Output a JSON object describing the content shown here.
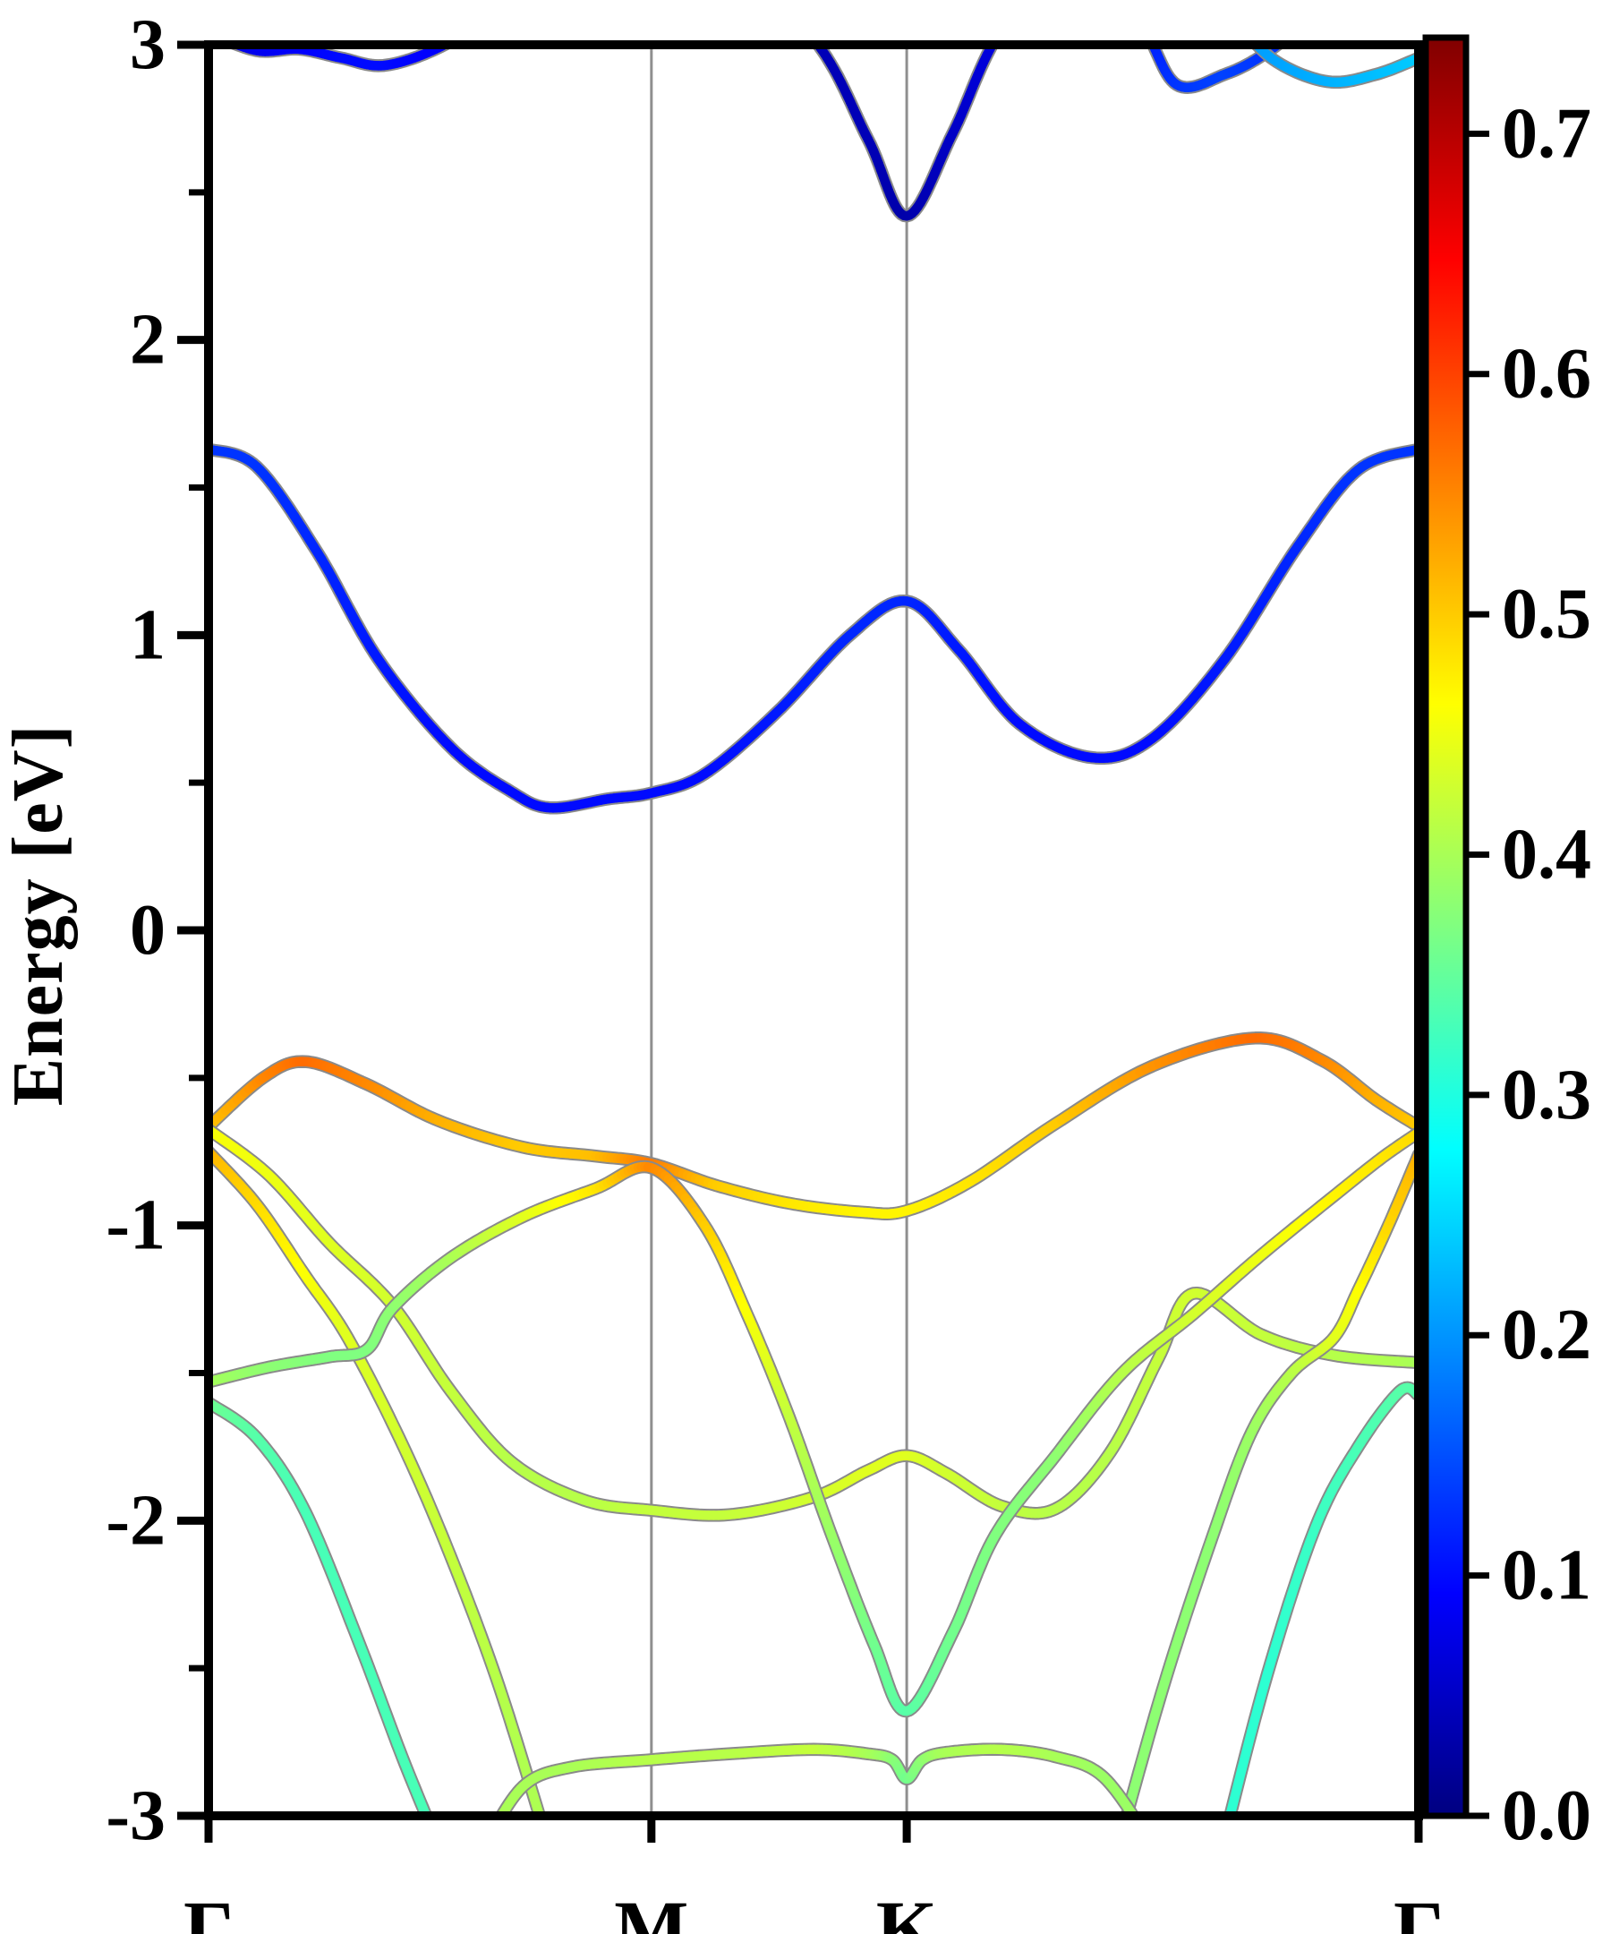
{
  "figure": {
    "background": "#ffffff",
    "accent_colors": {
      "spine": "#000000",
      "gridline": "#8f8f8f",
      "band_edge": "#8a8a8a"
    }
  },
  "chart_data": {
    "type": "line",
    "subtype": "band-structure-fatband",
    "title": "",
    "xlabel": "",
    "ylabel": "Energy [eV]",
    "ylim": [
      -3,
      3
    ],
    "grid": "vertical-at-high-symmetry-points",
    "x_ticks": [
      {
        "label": "Γ",
        "f": 0.0
      },
      {
        "label": "M",
        "f": 0.366
      },
      {
        "label": "K",
        "f": 0.577
      },
      {
        "label": "Γ",
        "f": 1.0
      }
    ],
    "y_major_ticks": [
      "3",
      "2",
      "1",
      "0",
      "-1",
      "-2",
      "-3"
    ],
    "y_major_values": [
      3,
      2,
      1,
      0,
      -1,
      -2,
      -3
    ],
    "y_minor_values": [
      2.5,
      1.5,
      0.5,
      -0.5,
      -1.5,
      -2.5
    ],
    "colorbar": {
      "colormap": "jet",
      "vmin": 0.0,
      "vmax": 0.74,
      "tick_labels": [
        "0.7",
        "0.6",
        "0.5",
        "0.4",
        "0.3",
        "0.2",
        "0.1",
        "0.0"
      ],
      "tick_values": [
        0.7,
        0.6,
        0.5,
        0.4,
        0.3,
        0.2,
        0.1,
        0.0
      ],
      "legend_position": "right"
    },
    "bands_note": "points are [k-fraction along Γ-M-K-Γ, energy eV, color weight]",
    "bands": [
      {
        "name": "conduction-1",
        "points": [
          [
            0,
            1.63,
            0.13
          ],
          [
            0.04,
            1.57,
            0.13
          ],
          [
            0.09,
            1.28,
            0.12
          ],
          [
            0.14,
            0.92,
            0.11
          ],
          [
            0.2,
            0.62,
            0.1
          ],
          [
            0.25,
            0.47,
            0.1
          ],
          [
            0.282,
            0.415,
            0.1
          ],
          [
            0.33,
            0.445,
            0.1
          ],
          [
            0.366,
            0.465,
            0.1
          ],
          [
            0.41,
            0.53,
            0.1
          ],
          [
            0.47,
            0.74,
            0.11
          ],
          [
            0.53,
            1.0,
            0.12
          ],
          [
            0.577,
            1.115,
            0.12
          ],
          [
            0.62,
            0.95,
            0.11
          ],
          [
            0.67,
            0.7,
            0.1
          ],
          [
            0.73,
            0.585,
            0.1
          ],
          [
            0.78,
            0.65,
            0.1
          ],
          [
            0.84,
            0.92,
            0.11
          ],
          [
            0.9,
            1.3,
            0.12
          ],
          [
            0.95,
            1.56,
            0.13
          ],
          [
            1,
            1.63,
            0.13
          ]
        ]
      },
      {
        "name": "conduction-2",
        "points": [
          [
            0,
            3.04,
            0.06
          ],
          [
            0.04,
            2.98,
            0.08
          ],
          [
            0.075,
            2.985,
            0.09
          ],
          [
            0.11,
            2.955,
            0.1
          ],
          [
            0.145,
            2.93,
            0.1
          ],
          [
            0.19,
            2.99,
            0.09
          ],
          [
            0.23,
            3.1,
            0.07
          ],
          [
            0.3,
            3.35,
            0.05
          ],
          [
            0.42,
            3.3,
            0.04
          ],
          [
            0.5,
            3.02,
            0.04
          ],
          [
            0.545,
            2.68,
            0.04
          ],
          [
            0.577,
            2.42,
            0.03
          ],
          [
            0.615,
            2.7,
            0.05
          ],
          [
            0.655,
            3.05,
            0.07
          ],
          [
            0.72,
            3.35,
            0.09
          ],
          [
            0.77,
            3.08,
            0.11
          ],
          [
            0.8,
            2.865,
            0.13
          ],
          [
            0.84,
            2.9,
            0.14
          ],
          [
            0.875,
            2.975,
            0.13
          ],
          [
            0.92,
            3.12,
            0.12
          ]
        ]
      },
      {
        "name": "conduction-3",
        "points": [
          [
            0.845,
            3.1,
            0.2
          ],
          [
            0.88,
            2.95,
            0.21
          ],
          [
            0.925,
            2.875,
            0.22
          ],
          [
            0.965,
            2.9,
            0.23
          ],
          [
            1,
            2.955,
            0.24
          ]
        ]
      },
      {
        "name": "valence-1",
        "points": [
          [
            0,
            -0.665,
            0.5
          ],
          [
            0.045,
            -0.5,
            0.55
          ],
          [
            0.08,
            -0.445,
            0.57
          ],
          [
            0.13,
            -0.52,
            0.55
          ],
          [
            0.19,
            -0.645,
            0.52
          ],
          [
            0.26,
            -0.735,
            0.5
          ],
          [
            0.32,
            -0.765,
            0.51
          ],
          [
            0.366,
            -0.79,
            0.56
          ],
          [
            0.42,
            -0.865,
            0.5
          ],
          [
            0.48,
            -0.925,
            0.48
          ],
          [
            0.54,
            -0.955,
            0.47
          ],
          [
            0.577,
            -0.95,
            0.47
          ],
          [
            0.63,
            -0.85,
            0.48
          ],
          [
            0.7,
            -0.655,
            0.5
          ],
          [
            0.78,
            -0.46,
            0.54
          ],
          [
            0.865,
            -0.365,
            0.57
          ],
          [
            0.92,
            -0.44,
            0.55
          ],
          [
            0.965,
            -0.575,
            0.52
          ],
          [
            1,
            -0.665,
            0.5
          ]
        ]
      },
      {
        "name": "valence-2",
        "points": [
          [
            0,
            -0.675,
            0.46
          ],
          [
            0.05,
            -0.83,
            0.45
          ],
          [
            0.1,
            -1.06,
            0.44
          ],
          [
            0.152,
            -1.27,
            0.43
          ],
          [
            0.2,
            -1.56,
            0.42
          ],
          [
            0.25,
            -1.8,
            0.41
          ],
          [
            0.31,
            -1.93,
            0.41
          ],
          [
            0.366,
            -1.965,
            0.42
          ],
          [
            0.43,
            -1.98,
            0.42
          ],
          [
            0.5,
            -1.92,
            0.43
          ],
          [
            0.545,
            -1.83,
            0.44
          ],
          [
            0.577,
            -1.78,
            0.44
          ],
          [
            0.61,
            -1.84,
            0.43
          ],
          [
            0.655,
            -1.95,
            0.42
          ],
          [
            0.7,
            -1.96,
            0.41
          ],
          [
            0.745,
            -1.77,
            0.41
          ],
          [
            0.785,
            -1.45,
            0.42
          ],
          [
            0.814,
            -1.23,
            0.43
          ],
          [
            0.87,
            -1.37,
            0.42
          ],
          [
            0.93,
            -1.44,
            0.41
          ],
          [
            1,
            -1.465,
            0.4
          ]
        ]
      },
      {
        "name": "valence-3-left",
        "points": [
          [
            0,
            -0.75,
            0.52
          ],
          [
            0.04,
            -0.93,
            0.49
          ],
          [
            0.08,
            -1.17,
            0.46
          ],
          [
            0.115,
            -1.38,
            0.44
          ],
          [
            0.16,
            -1.74,
            0.43
          ],
          [
            0.2,
            -2.12,
            0.42
          ],
          [
            0.24,
            -2.56,
            0.41
          ],
          [
            0.281,
            -3.1,
            0.4
          ]
        ]
      },
      {
        "name": "valence-3-right",
        "points": [
          [
            0.752,
            -3.1,
            0.38
          ],
          [
            0.79,
            -2.55,
            0.38
          ],
          [
            0.83,
            -2.05,
            0.38
          ],
          [
            0.862,
            -1.7,
            0.39
          ],
          [
            0.895,
            -1.5,
            0.41
          ],
          [
            0.93,
            -1.38,
            0.44
          ],
          [
            0.95,
            -1.22,
            0.46
          ],
          [
            0.975,
            -1.0,
            0.49
          ],
          [
            1,
            -0.76,
            0.52
          ]
        ]
      },
      {
        "name": "valence-4",
        "points": [
          [
            0,
            -1.53,
            0.4
          ],
          [
            0.05,
            -1.48,
            0.38
          ],
          [
            0.1,
            -1.445,
            0.37
          ],
          [
            0.131,
            -1.42,
            0.37
          ],
          [
            0.152,
            -1.28,
            0.38
          ],
          [
            0.2,
            -1.11,
            0.4
          ],
          [
            0.26,
            -0.97,
            0.44
          ],
          [
            0.32,
            -0.875,
            0.48
          ],
          [
            0.366,
            -0.805,
            0.55
          ],
          [
            0.41,
            -1.0,
            0.5
          ],
          [
            0.445,
            -1.3,
            0.46
          ],
          [
            0.48,
            -1.65,
            0.42
          ],
          [
            0.515,
            -2.05,
            0.39
          ],
          [
            0.55,
            -2.42,
            0.36
          ],
          [
            0.577,
            -2.645,
            0.34
          ],
          [
            0.615,
            -2.38,
            0.36
          ],
          [
            0.65,
            -2.05,
            0.37
          ],
          [
            0.7,
            -1.78,
            0.38
          ],
          [
            0.755,
            -1.5,
            0.41
          ],
          [
            0.814,
            -1.3,
            0.43
          ],
          [
            0.87,
            -1.1,
            0.45
          ],
          [
            0.93,
            -0.9,
            0.47
          ],
          [
            0.97,
            -0.77,
            0.48
          ],
          [
            1,
            -0.685,
            0.49
          ]
        ]
      },
      {
        "name": "valence-5-left",
        "points": [
          [
            0,
            -1.6,
            0.36
          ],
          [
            0.04,
            -1.72,
            0.34
          ],
          [
            0.08,
            -1.97,
            0.33
          ],
          [
            0.125,
            -2.42,
            0.33
          ],
          [
            0.16,
            -2.8,
            0.33
          ],
          [
            0.19,
            -3.1,
            0.33
          ]
        ]
      },
      {
        "name": "valence-5-right",
        "points": [
          [
            0.838,
            -3.1,
            0.31
          ],
          [
            0.875,
            -2.52,
            0.31
          ],
          [
            0.915,
            -2.02,
            0.32
          ],
          [
            0.95,
            -1.75,
            0.33
          ],
          [
            0.985,
            -1.56,
            0.34
          ],
          [
            1,
            -1.575,
            0.34
          ]
        ]
      },
      {
        "name": "valence-6",
        "points": [
          [
            0.228,
            -3.1,
            0.4
          ],
          [
            0.26,
            -2.9,
            0.4
          ],
          [
            0.3,
            -2.835,
            0.4
          ],
          [
            0.366,
            -2.81,
            0.41
          ],
          [
            0.43,
            -2.79,
            0.41
          ],
          [
            0.5,
            -2.775,
            0.42
          ],
          [
            0.545,
            -2.79,
            0.4
          ],
          [
            0.565,
            -2.81,
            0.38
          ],
          [
            0.577,
            -2.875,
            0.36
          ],
          [
            0.59,
            -2.81,
            0.38
          ],
          [
            0.61,
            -2.785,
            0.4
          ],
          [
            0.655,
            -2.775,
            0.41
          ],
          [
            0.7,
            -2.8,
            0.4
          ],
          [
            0.74,
            -2.87,
            0.39
          ],
          [
            0.78,
            -3.1,
            0.39
          ]
        ]
      }
    ]
  }
}
